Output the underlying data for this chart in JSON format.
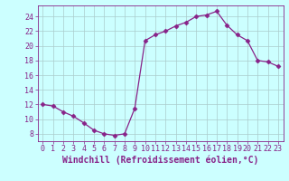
{
  "x": [
    0,
    1,
    2,
    3,
    4,
    5,
    6,
    7,
    8,
    9,
    10,
    11,
    12,
    13,
    14,
    15,
    16,
    17,
    18,
    19,
    20,
    21,
    22,
    23
  ],
  "y": [
    12,
    11.8,
    11,
    10.4,
    9.5,
    8.5,
    8,
    7.8,
    8,
    11.5,
    20.7,
    21.5,
    22,
    22.7,
    23.2,
    24,
    24.2,
    24.7,
    22.8,
    21.5,
    20.7,
    18,
    17.8,
    17.2
  ],
  "line_color": "#882288",
  "marker": "D",
  "markersize": 2.5,
  "linewidth": 0.9,
  "bg_color": "#ccffff",
  "grid_color": "#aacccc",
  "xlabel": "Windchill (Refroidissement éolien,°C)",
  "xlabel_fontsize": 7,
  "tick_fontsize": 6,
  "xlim": [
    -0.5,
    23.5
  ],
  "ylim": [
    7,
    25.5
  ],
  "yticks": [
    8,
    10,
    12,
    14,
    16,
    18,
    20,
    22,
    24
  ],
  "xticks": [
    0,
    1,
    2,
    3,
    4,
    5,
    6,
    7,
    8,
    9,
    10,
    11,
    12,
    13,
    14,
    15,
    16,
    17,
    18,
    19,
    20,
    21,
    22,
    23
  ]
}
